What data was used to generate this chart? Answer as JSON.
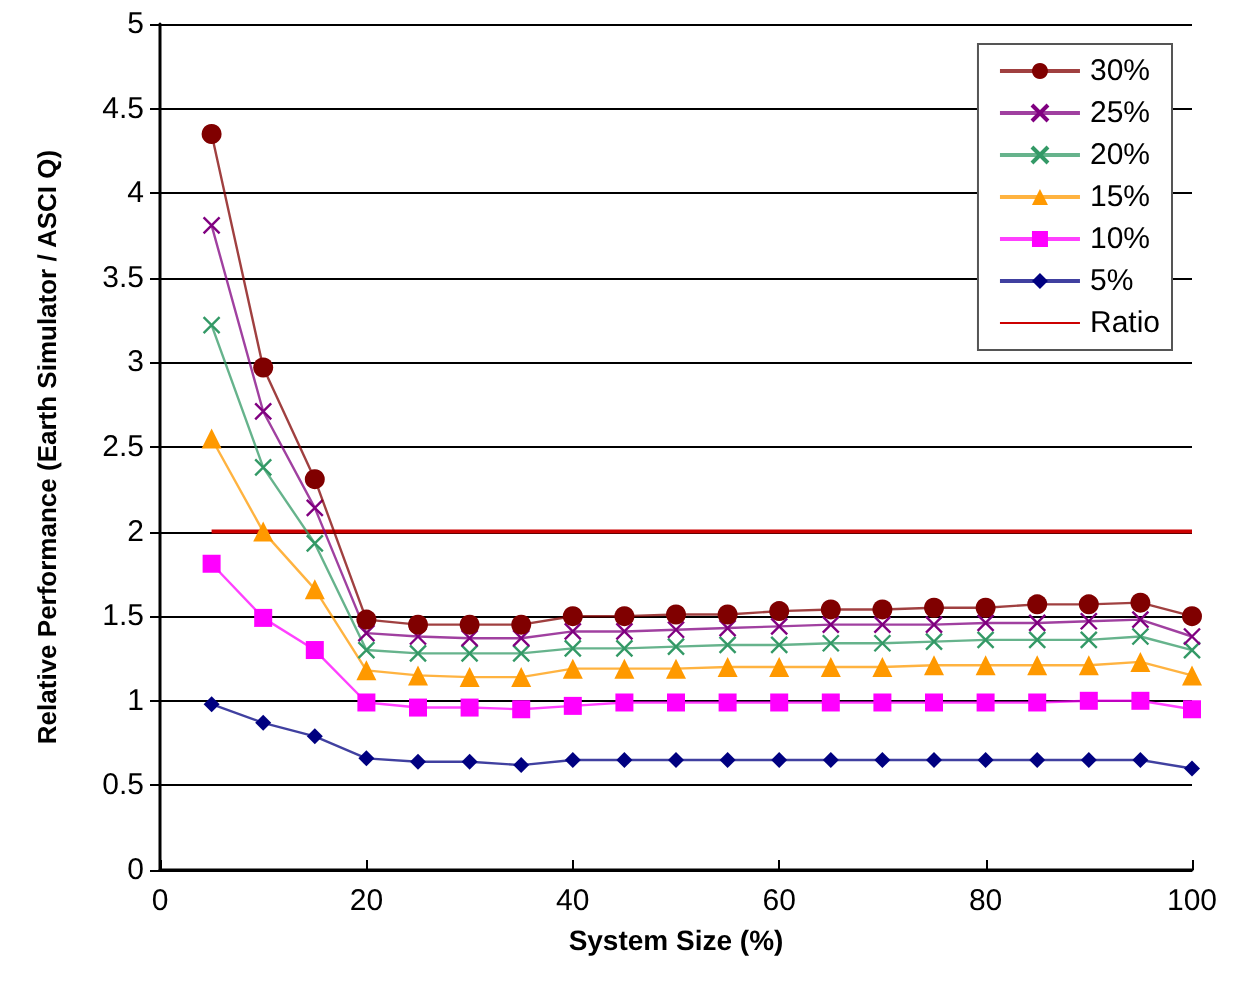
{
  "chart_data": {
    "type": "line",
    "xlabel": "System Size (%)",
    "ylabel": "Relative Performance (Earth Simulator / ASCI Q)",
    "x": [
      5,
      10,
      15,
      20,
      25,
      30,
      35,
      40,
      45,
      50,
      55,
      60,
      65,
      70,
      75,
      80,
      85,
      90,
      95,
      100
    ],
    "xlim": [
      0,
      100
    ],
    "xticks": [
      0,
      20,
      40,
      60,
      80,
      100
    ],
    "ylim": [
      0,
      5
    ],
    "yticks": [
      0,
      0.5,
      1,
      1.5,
      2,
      2.5,
      3,
      3.5,
      4,
      4.5,
      5
    ],
    "grid": "y",
    "legend": "top right",
    "series": [
      {
        "name": "30%",
        "color": "#800000",
        "marker": "circle",
        "values": [
          4.35,
          2.97,
          2.31,
          1.48,
          1.45,
          1.45,
          1.45,
          1.5,
          1.5,
          1.51,
          1.51,
          1.53,
          1.54,
          1.54,
          1.55,
          1.55,
          1.57,
          1.57,
          1.58,
          1.5
        ]
      },
      {
        "name": "25%",
        "color": "#800080",
        "marker": "cross",
        "values": [
          3.81,
          2.71,
          2.14,
          1.4,
          1.38,
          1.37,
          1.37,
          1.41,
          1.41,
          1.42,
          1.43,
          1.44,
          1.45,
          1.45,
          1.45,
          1.46,
          1.46,
          1.47,
          1.48,
          1.38
        ]
      },
      {
        "name": "20%",
        "color": "#339966",
        "marker": "cross",
        "values": [
          3.22,
          2.38,
          1.93,
          1.3,
          1.28,
          1.28,
          1.28,
          1.31,
          1.31,
          1.32,
          1.33,
          1.33,
          1.34,
          1.34,
          1.35,
          1.36,
          1.36,
          1.36,
          1.38,
          1.3
        ]
      },
      {
        "name": "15%",
        "color": "#ff9900",
        "marker": "triangle",
        "values": [
          2.55,
          2.0,
          1.66,
          1.18,
          1.15,
          1.14,
          1.14,
          1.19,
          1.19,
          1.19,
          1.2,
          1.2,
          1.2,
          1.2,
          1.21,
          1.21,
          1.21,
          1.21,
          1.23,
          1.15
        ]
      },
      {
        "name": "10%",
        "color": "#ff00ff",
        "marker": "square",
        "values": [
          1.81,
          1.49,
          1.3,
          0.99,
          0.96,
          0.96,
          0.95,
          0.97,
          0.99,
          0.99,
          0.99,
          0.99,
          0.99,
          0.99,
          0.99,
          0.99,
          0.99,
          1.0,
          1.0,
          0.95
        ]
      },
      {
        "name": "5%",
        "color": "#000080",
        "marker": "diamond",
        "values": [
          0.98,
          0.87,
          0.79,
          0.66,
          0.64,
          0.64,
          0.62,
          0.65,
          0.65,
          0.65,
          0.65,
          0.65,
          0.65,
          0.65,
          0.65,
          0.65,
          0.65,
          0.65,
          0.65,
          0.6
        ]
      },
      {
        "name": "Ratio",
        "color": "#cc0000",
        "marker": "none",
        "x": [
          5,
          100
        ],
        "values": [
          2,
          2
        ]
      }
    ]
  }
}
